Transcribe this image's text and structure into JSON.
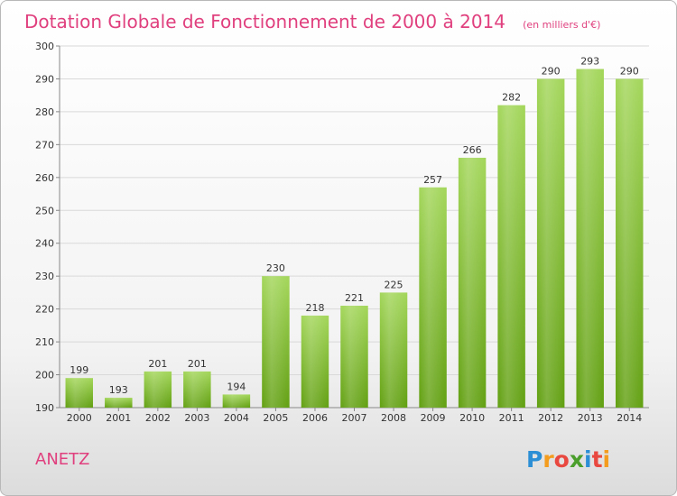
{
  "chart_data": {
    "type": "bar",
    "title": "Dotation Globale de Fonctionnement de 2000 à 2014",
    "subtitle": "(en milliers d'€)",
    "categories": [
      "2000",
      "2001",
      "2002",
      "2003",
      "2004",
      "2005",
      "2006",
      "2007",
      "2008",
      "2009",
      "2010",
      "2011",
      "2012",
      "2013",
      "2014"
    ],
    "values": [
      199,
      193,
      201,
      201,
      194,
      230,
      218,
      221,
      225,
      257,
      266,
      282,
      290,
      293,
      290
    ],
    "ylim": [
      190,
      300
    ],
    "yticks": [
      190,
      200,
      210,
      220,
      230,
      240,
      250,
      260,
      270,
      280,
      290,
      300
    ],
    "grid": true,
    "bar_color": "#7dbb2a"
  },
  "commune_name": "ANETZ",
  "brand": {
    "letters": [
      "P",
      "r",
      "o",
      "x",
      "i",
      "t",
      "i"
    ],
    "colors": [
      "#2c8fd6",
      "#f39c1e",
      "#e8483f",
      "#4a9e2b",
      "#2c8fd6",
      "#e8483f",
      "#f39c1e"
    ]
  }
}
